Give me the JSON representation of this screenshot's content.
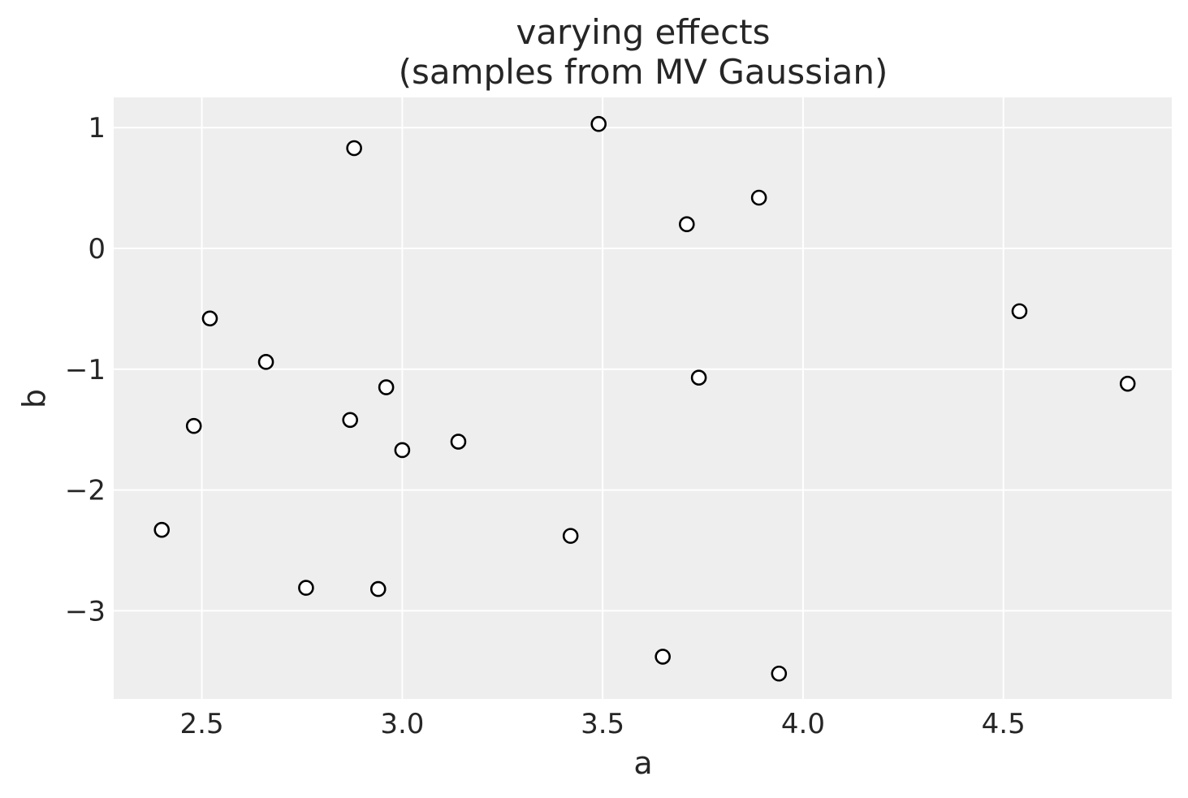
{
  "chart_data": {
    "type": "scatter",
    "title": [
      "varying effects",
      "(samples from MV Gaussian)"
    ],
    "xlabel": "a",
    "ylabel": "b",
    "xlim": [
      2.28,
      4.92
    ],
    "ylim": [
      -3.73,
      1.25
    ],
    "xticks": [
      2.5,
      3.0,
      3.5,
      4.0,
      4.5
    ],
    "xtick_labels": [
      "2.5",
      "3.0",
      "3.5",
      "4.0",
      "4.5"
    ],
    "yticks": [
      1,
      0,
      -1,
      -2,
      -3
    ],
    "ytick_labels": [
      "1",
      "0",
      "−1",
      "−2",
      "−3"
    ],
    "grid": true,
    "background": "#eeeeee",
    "marker": {
      "fill": "#ffffff",
      "edge": "#000000"
    },
    "points": [
      {
        "x": 2.4,
        "y": -2.33
      },
      {
        "x": 2.48,
        "y": -1.47
      },
      {
        "x": 2.52,
        "y": -0.58
      },
      {
        "x": 2.66,
        "y": -0.94
      },
      {
        "x": 2.76,
        "y": -2.81
      },
      {
        "x": 2.87,
        "y": -1.42
      },
      {
        "x": 2.88,
        "y": 0.83
      },
      {
        "x": 2.94,
        "y": -2.82
      },
      {
        "x": 2.96,
        "y": -1.15
      },
      {
        "x": 3.0,
        "y": -1.67
      },
      {
        "x": 3.14,
        "y": -1.6
      },
      {
        "x": 3.42,
        "y": -2.38
      },
      {
        "x": 3.49,
        "y": 1.03
      },
      {
        "x": 3.65,
        "y": -3.38
      },
      {
        "x": 3.71,
        "y": 0.2
      },
      {
        "x": 3.74,
        "y": -1.07
      },
      {
        "x": 3.89,
        "y": 0.42
      },
      {
        "x": 3.94,
        "y": -3.52
      },
      {
        "x": 4.54,
        "y": -0.52
      },
      {
        "x": 4.81,
        "y": -1.12
      }
    ]
  }
}
